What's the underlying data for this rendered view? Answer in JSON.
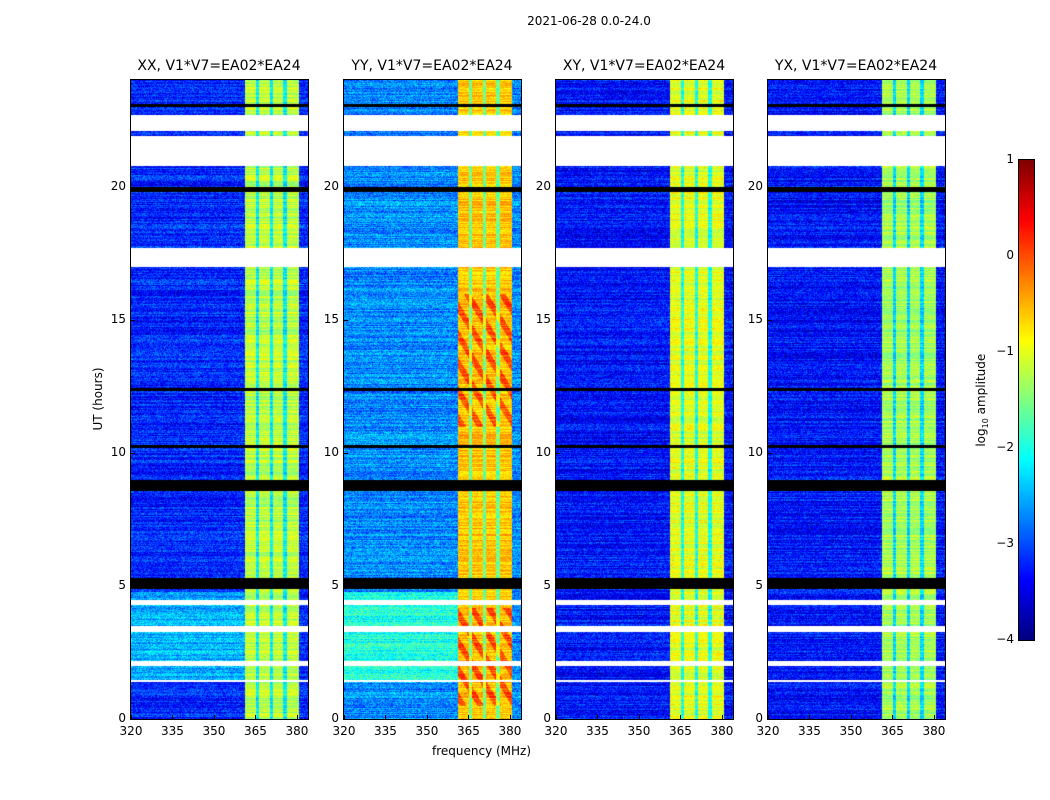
{
  "suptitle": "2021-06-28 0.0-24.0",
  "chart_data": {
    "type": "heatmap",
    "xlabel": "frequency (MHz)",
    "ylabel": "UT (hours)",
    "xlim": [
      320,
      384
    ],
    "ylim": [
      0,
      24
    ],
    "xticks": [
      "320",
      "335",
      "350",
      "365",
      "380"
    ],
    "yticks": [
      "0",
      "5",
      "10",
      "15",
      "20"
    ],
    "colorbar": {
      "label": "log",
      "label_sub": "10",
      "label_rest": " amplitude",
      "range": [
        -4,
        1
      ],
      "ticks": [
        "1",
        "0",
        "−1",
        "−2",
        "−3",
        "−4"
      ],
      "colormap": "jet"
    },
    "panels": [
      {
        "title": "XX, V1*V7=EA02*EA24",
        "baseline": -3.2,
        "band_level": -1.2
      },
      {
        "title": "YY, V1*V7=EA02*EA24",
        "baseline": -2.7,
        "band_level": -0.6
      },
      {
        "title": "XY, V1*V7=EA02*EA24",
        "baseline": -3.3,
        "band_level": -1.0
      },
      {
        "title": "YX, V1*V7=EA02*EA24",
        "baseline": -3.3,
        "band_level": -1.3
      }
    ],
    "band_MHz": [
      361,
      380.5
    ],
    "band_gaps_MHz": [
      365.5,
      370.5,
      375.5
    ],
    "masked_hours": [
      [
        22.1,
        22.7
      ],
      [
        20.8,
        21.9
      ],
      [
        17.0,
        17.7
      ],
      [
        4.3,
        4.5
      ],
      [
        3.3,
        3.5
      ],
      [
        2.0,
        2.2
      ],
      [
        1.4,
        1.5
      ]
    ],
    "flagged_hours": [
      [
        23.0,
        23.1
      ],
      [
        19.8,
        20.0
      ],
      [
        17.6,
        17.7
      ],
      [
        12.35,
        12.45
      ],
      [
        10.2,
        10.3
      ],
      [
        8.6,
        9.0
      ],
      [
        4.9,
        5.3
      ]
    ]
  }
}
